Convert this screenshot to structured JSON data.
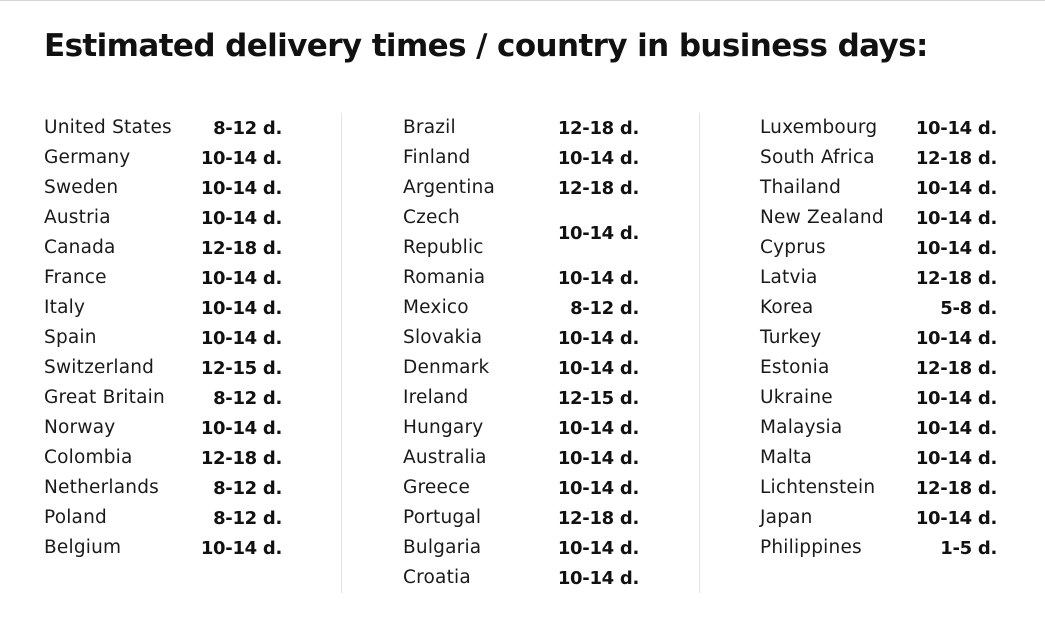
{
  "title": "Estimated delivery times / country in business days:",
  "columns": [
    [
      {
        "country": "United States",
        "days": "8-12 d."
      },
      {
        "country": "Germany",
        "days": "10-14 d."
      },
      {
        "country": "Sweden",
        "days": "10-14 d."
      },
      {
        "country": "Austria",
        "days": "10-14 d."
      },
      {
        "country": "Canada",
        "days": "12-18 d."
      },
      {
        "country": "France",
        "days": "10-14 d."
      },
      {
        "country": "Italy",
        "days": "10-14 d."
      },
      {
        "country": "Spain",
        "days": "10-14 d."
      },
      {
        "country": "Switzerland",
        "days": "12-15 d."
      },
      {
        "country": "Great Britain",
        "days": "8-12 d."
      },
      {
        "country": "Norway",
        "days": "10-14 d."
      },
      {
        "country": "Colombia",
        "days": "12-18 d."
      },
      {
        "country": "Netherlands",
        "days": "8-12 d."
      },
      {
        "country": "Poland",
        "days": "8-12 d."
      },
      {
        "country": "Belgium",
        "days": "10-14 d."
      }
    ],
    [
      {
        "country": "Brazil",
        "days": "12-18 d."
      },
      {
        "country": "Finland",
        "days": "10-14 d."
      },
      {
        "country": "Argentina",
        "days": "12-18 d."
      },
      {
        "country": "Czech Republic",
        "days": "10-14 d."
      },
      {
        "country": "Romania",
        "days": "10-14 d."
      },
      {
        "country": "Mexico",
        "days": "8-12 d."
      },
      {
        "country": "Slovakia",
        "days": "10-14 d."
      },
      {
        "country": "Denmark",
        "days": "10-14 d."
      },
      {
        "country": "Ireland",
        "days": "12-15 d."
      },
      {
        "country": "Hungary",
        "days": "10-14 d."
      },
      {
        "country": "Australia",
        "days": "10-14 d."
      },
      {
        "country": "Greece",
        "days": "10-14 d."
      },
      {
        "country": "Portugal",
        "days": "12-18 d."
      },
      {
        "country": "Bulgaria",
        "days": "10-14 d."
      },
      {
        "country": "Croatia",
        "days": "10-14 d."
      }
    ],
    [
      {
        "country": "Luxembourg",
        "days": "10-14 d."
      },
      {
        "country": "South Africa",
        "days": "12-18 d."
      },
      {
        "country": "Thailand",
        "days": "10-14 d."
      },
      {
        "country": "New Zealand",
        "days": "10-14 d."
      },
      {
        "country": "Cyprus",
        "days": "10-14 d."
      },
      {
        "country": "Latvia",
        "days": "12-18 d."
      },
      {
        "country": "Korea",
        "days": "5-8 d."
      },
      {
        "country": "Turkey",
        "days": "10-14 d."
      },
      {
        "country": "Estonia",
        "days": "12-18 d."
      },
      {
        "country": "Ukraine",
        "days": "10-14 d."
      },
      {
        "country": "Malaysia",
        "days": "10-14 d."
      },
      {
        "country": "Malta",
        "days": "10-14 d."
      },
      {
        "country": "Lichtenstein",
        "days": "12-18 d."
      },
      {
        "country": "Japan",
        "days": "10-14 d."
      },
      {
        "country": "Philippines",
        "days": "1-5 d."
      }
    ]
  ]
}
